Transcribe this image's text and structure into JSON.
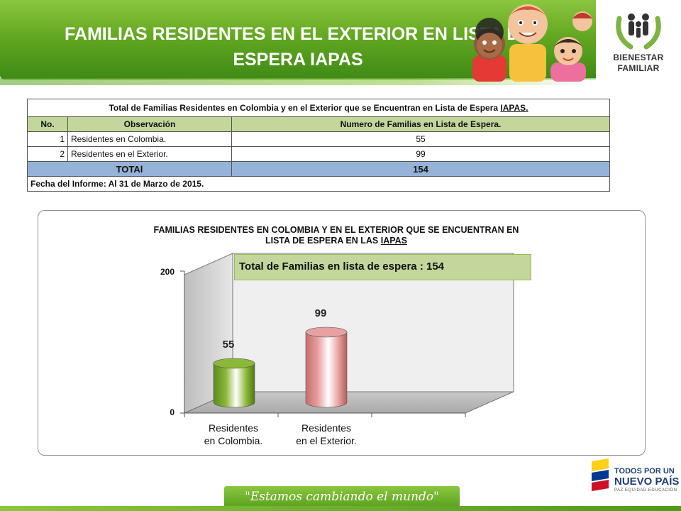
{
  "header": {
    "title_line1": "FAMILIAS RESIDENTES EN EL  EXTERIOR EN LISTA DE",
    "title_line2": "ESPERA IAPAS",
    "logo_line1": "BIENESTAR",
    "logo_line2": "FAMILIAR"
  },
  "table": {
    "caption_prefix": "Total de Familias  Residentes en Colombia y en  el Exterior que se Encuentran en Lista de Espera ",
    "caption_underlined": "IAPAS.",
    "columns": [
      "No.",
      "Observación",
      "Numero de Familias en Lista de Espera."
    ],
    "rows": [
      {
        "no": "1",
        "observacion": "Residentes en Colombia.",
        "valor": "55"
      },
      {
        "no": "2",
        "observacion": "Residentes en el Exterior.",
        "valor": "99"
      }
    ],
    "total_label": "TOTAl",
    "total_value": "154",
    "date": "Fecha del Informe: Al 31 de Marzo de 2015."
  },
  "chart": {
    "title_line1": "FAMILIAS RESIDENTES EN COLOMBIA Y EN EL EXTERIOR QUE SE ENCUENTRAN EN",
    "title_line2_prefix": "LISTA DE ESPERA EN LAS  ",
    "title_line2_underlined": "IAPAS",
    "note": "Total de Familias en lista de espera :  154"
  },
  "chart_data": {
    "type": "bar",
    "categories": [
      "Residentes en Colombia.",
      "Residentes en el Exterior."
    ],
    "category_lines": [
      [
        "Residentes",
        "en Colombia."
      ],
      [
        "Residentes",
        "en el Exterior."
      ]
    ],
    "values": [
      55,
      99
    ],
    "value_labels": [
      "55",
      "99"
    ],
    "ylim": [
      0,
      200
    ],
    "yticks": [
      "0",
      "200"
    ],
    "bar_colors": [
      "#8ab837",
      "#e8a0a0"
    ],
    "title": "FAMILIAS RESIDENTES EN COLOMBIA Y EN EL EXTERIOR QUE SE ENCUENTRAN EN LISTA DE ESPERA EN LAS  IAPAS",
    "xlabel": "",
    "ylabel": ""
  },
  "footer": {
    "slogan": "\"Estamos cambiando el mundo\"",
    "pais_line1": "TODOS POR UN",
    "pais_line2": "NUEVO PAÍS",
    "pais_line3": "PAZ  EQUIDAD  EDUCACIÓN"
  }
}
